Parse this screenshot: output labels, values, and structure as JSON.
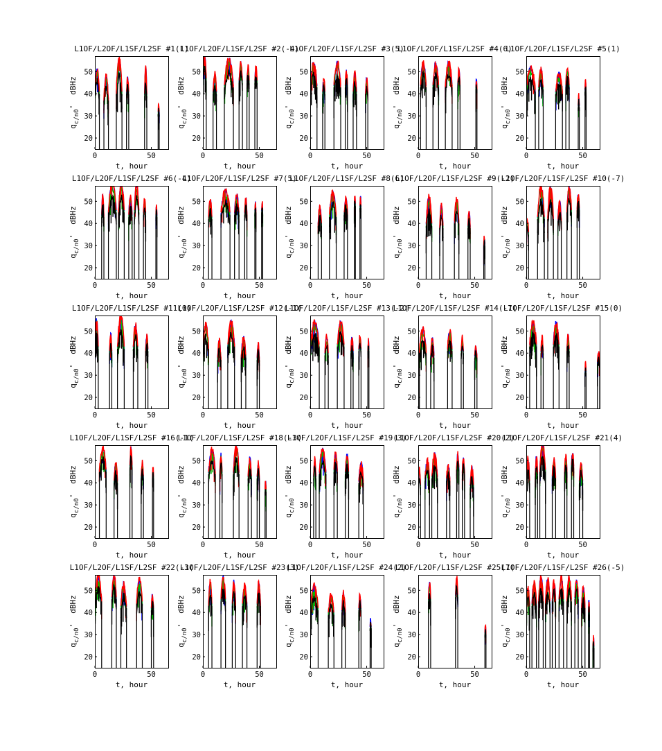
{
  "chart_data": {
    "type": "line",
    "series_colors": {
      "L1OF": "#0000ff",
      "L2OF": "#ff0000",
      "L1SF": "#00bb00",
      "L2SF": "#000000"
    },
    "xlabel": "t, hour",
    "ylabel_main": "q",
    "ylabel_sub": "c/n0",
    "ylabel_prime": "'",
    "ylabel_unit": "dBHz",
    "xlim": [
      0,
      65
    ],
    "ylim": [
      15,
      57
    ],
    "xticks": [
      0,
      50
    ],
    "yticks": [
      20,
      30,
      40,
      50
    ],
    "panels": [
      {
        "title": "L1OF/L2OF/L1SF/L2SF #1(1)",
        "passes": [
          [
            0,
            4,
            50,
            10
          ],
          [
            8,
            12,
            47,
            10
          ],
          [
            19,
            24,
            55,
            15
          ],
          [
            28,
            30,
            46,
            6
          ],
          [
            44,
            46,
            51,
            12
          ],
          [
            56,
            57,
            34,
            3
          ]
        ]
      },
      {
        "title": "L1OF/L2OF/L1SF/L2SF #2(-4)",
        "passes": [
          [
            0,
            3,
            56,
            10
          ],
          [
            9,
            12,
            48,
            8
          ],
          [
            19,
            27,
            55,
            12
          ],
          [
            32,
            35,
            53,
            8
          ],
          [
            39,
            41,
            51,
            6
          ],
          [
            46,
            48,
            51,
            6
          ]
        ]
      },
      {
        "title": "L1OF/L2OF/L1SF/L2SF #3(5)",
        "passes": [
          [
            0,
            6,
            53,
            10
          ],
          [
            11,
            13,
            46,
            6
          ],
          [
            21,
            27,
            53,
            10
          ],
          [
            31,
            33,
            49,
            6
          ],
          [
            38,
            41,
            48,
            8
          ],
          [
            49,
            51,
            46,
            6
          ]
        ]
      },
      {
        "title": "L1OF/L2OF/L1SF/L2SF #4(6)",
        "passes": [
          [
            2,
            7,
            53,
            10
          ],
          [
            13,
            18,
            53,
            10
          ],
          [
            24,
            30,
            53,
            10
          ],
          [
            35,
            37,
            50,
            6
          ],
          [
            51,
            52,
            46,
            4
          ]
        ]
      },
      {
        "title": "L1OF/L2OF/L1SF/L2SF #5(1)",
        "passes": [
          [
            0,
            8,
            51,
            10
          ],
          [
            11,
            15,
            50,
            8
          ],
          [
            26,
            32,
            48,
            8
          ],
          [
            35,
            38,
            51,
            8
          ],
          [
            46,
            47,
            38,
            4
          ],
          [
            52,
            53,
            45,
            4
          ]
        ]
      },
      {
        "title": "L1OF/L2OF/L1SF/L2SF #6(-4)",
        "passes": [
          [
            6,
            8,
            53,
            10
          ],
          [
            12,
            19,
            57,
            12
          ],
          [
            21,
            26,
            57,
            12
          ],
          [
            30,
            33,
            51,
            8
          ],
          [
            35,
            39,
            57,
            12
          ],
          [
            43,
            45,
            50,
            6
          ],
          [
            54,
            55,
            47,
            4
          ]
        ]
      },
      {
        "title": "L1OF/L2OF/L1SF/L2SF #7(5)",
        "passes": [
          [
            5,
            8,
            50,
            8
          ],
          [
            16,
            24,
            54,
            10
          ],
          [
            28,
            32,
            52,
            8
          ],
          [
            37,
            39,
            50,
            6
          ],
          [
            46,
            47,
            49,
            4
          ],
          [
            52,
            53,
            49,
            4
          ]
        ]
      },
      {
        "title": "L1OF/L2OF/L1SF/L2SF #8(6)",
        "passes": [
          [
            7,
            10,
            47,
            8
          ],
          [
            17,
            23,
            53,
            10
          ],
          [
            30,
            33,
            50,
            6
          ],
          [
            39,
            40,
            51,
            3
          ],
          [
            44,
            45,
            51,
            4
          ]
        ]
      },
      {
        "title": "L1OF/L2OF/L1SF/L2SF #9(-2)",
        "passes": [
          [
            7,
            12,
            51,
            12
          ],
          [
            19,
            22,
            48,
            10
          ],
          [
            32,
            36,
            50,
            10
          ],
          [
            44,
            46,
            44,
            6
          ],
          [
            58,
            59,
            33,
            3
          ]
        ]
      },
      {
        "title": "L1OF/L2OF/L1SF/L2SF #10(-7)",
        "passes": [
          [
            0,
            2,
            41,
            6
          ],
          [
            10,
            16,
            56,
            14
          ],
          [
            19,
            24,
            56,
            14
          ],
          [
            28,
            31,
            49,
            8
          ],
          [
            36,
            40,
            55,
            10
          ],
          [
            45,
            47,
            52,
            6
          ]
        ]
      },
      {
        "title": "L1OF/L2OF/L1SF/L2SF #11(0)",
        "passes": [
          [
            0,
            3,
            54,
            12
          ],
          [
            13,
            15,
            48,
            8
          ],
          [
            20,
            26,
            56,
            14
          ],
          [
            34,
            38,
            52,
            10
          ],
          [
            45,
            47,
            47,
            6
          ]
        ]
      },
      {
        "title": "L1OF/L2OF/L1SF/L2SF #12(-1(",
        "passes": [
          [
            0,
            5,
            52,
            10
          ],
          [
            13,
            16,
            45,
            8
          ],
          [
            22,
            28,
            53,
            10
          ],
          [
            34,
            38,
            46,
            8
          ],
          [
            48,
            50,
            43,
            6
          ]
        ]
      },
      {
        "title": "L1OF/L2OF/L1SF/L2SF #13(-2(",
        "passes": [
          [
            0,
            8,
            53,
            10
          ],
          [
            13,
            16,
            47,
            8
          ],
          [
            24,
            30,
            53,
            10
          ],
          [
            36,
            38,
            46,
            6
          ],
          [
            43,
            45,
            47,
            6
          ],
          [
            51,
            52,
            45,
            4
          ]
        ]
      },
      {
        "title": "L1OF/L2OF/L1SF/L2SF #14(-7(",
        "passes": [
          [
            1,
            7,
            50,
            10
          ],
          [
            11,
            14,
            46,
            8
          ],
          [
            26,
            30,
            49,
            8
          ],
          [
            38,
            40,
            46,
            6
          ],
          [
            50,
            52,
            42,
            4
          ]
        ]
      },
      {
        "title": "L1OF/L2OF/L1SF/L2SF #15(0)",
        "passes": [
          [
            3,
            9,
            53,
            10
          ],
          [
            13,
            15,
            46,
            6
          ],
          [
            24,
            29,
            53,
            10
          ],
          [
            36,
            38,
            47,
            6
          ],
          [
            52,
            53,
            34,
            3
          ],
          [
            63,
            65,
            39,
            4
          ]
        ]
      },
      {
        "title": "L1OF/L2OF/L1SF/L2SF #16(-1(",
        "passes": [
          [
            4,
            10,
            55,
            10
          ],
          [
            17,
            20,
            48,
            8
          ],
          [
            31,
            33,
            55,
            8
          ],
          [
            41,
            43,
            48,
            6
          ],
          [
            51,
            52,
            46,
            4
          ]
        ]
      },
      {
        "title": "L1OF/L2OF/L1SF/L2SF #18(-3(",
        "passes": [
          [
            5,
            11,
            54,
            10
          ],
          [
            15,
            17,
            52,
            8
          ],
          [
            27,
            32,
            56,
            12
          ],
          [
            40,
            43,
            50,
            8
          ],
          [
            48,
            50,
            48,
            6
          ],
          [
            55,
            56,
            40,
            4
          ]
        ]
      },
      {
        "title": "L1OF/L2OF/L1SF/L2SF #19(3)",
        "passes": [
          [
            3,
            5,
            50,
            8
          ],
          [
            8,
            14,
            54,
            10
          ],
          [
            21,
            24,
            53,
            8
          ],
          [
            31,
            34,
            52,
            8
          ],
          [
            43,
            47,
            48,
            8
          ]
        ]
      },
      {
        "title": "L1OF/L2OF/L1SF/L2SF #20(2)",
        "passes": [
          [
            0,
            2,
            46,
            8
          ],
          [
            6,
            10,
            49,
            8
          ],
          [
            12,
            17,
            52,
            10
          ],
          [
            25,
            28,
            47,
            6
          ],
          [
            34,
            36,
            52,
            6
          ],
          [
            39,
            41,
            50,
            6
          ],
          [
            46,
            49,
            46,
            8
          ]
        ]
      },
      {
        "title": "L1OF/L2OF/L1SF/L2SF #21(4)",
        "passes": [
          [
            0,
            3,
            50,
            10
          ],
          [
            8,
            10,
            51,
            8
          ],
          [
            12,
            17,
            57,
            12
          ],
          [
            23,
            26,
            50,
            8
          ],
          [
            34,
            36,
            51,
            6
          ],
          [
            40,
            42,
            53,
            6
          ],
          [
            47,
            50,
            48,
            8
          ]
        ]
      },
      {
        "title": "L1OF/L2OF/L1SF/L2SF #22(-3(",
        "passes": [
          [
            0,
            6,
            55,
            10
          ],
          [
            15,
            19,
            56,
            10
          ],
          [
            23,
            28,
            52,
            10
          ],
          [
            37,
            42,
            54,
            10
          ],
          [
            50,
            52,
            47,
            6
          ]
        ]
      },
      {
        "title": "L1OF/L2OF/L1SF/L2SF #23(3)",
        "passes": [
          [
            5,
            8,
            53,
            10
          ],
          [
            16,
            20,
            55,
            10
          ],
          [
            26,
            29,
            53,
            10
          ],
          [
            35,
            39,
            51,
            8
          ],
          [
            48,
            51,
            53,
            10
          ]
        ]
      },
      {
        "title": "L1OF/L2OF/L1SF/L2SF #24(2)",
        "passes": [
          [
            0,
            7,
            51,
            10
          ],
          [
            16,
            21,
            47,
            8
          ],
          [
            28,
            31,
            48,
            8
          ],
          [
            43,
            45,
            47,
            6
          ],
          [
            53,
            54,
            36,
            3
          ]
        ]
      },
      {
        "title": "L1OF/L2OF/L1SF/L2SF #25(7(",
        "passes": [
          [
            9,
            11,
            53,
            8
          ],
          [
            33,
            35,
            55,
            8
          ],
          [
            59,
            60,
            33,
            3
          ]
        ]
      },
      {
        "title": "L1OF/L2OF/L1SF/L2SF #26(-5)",
        "passes": [
          [
            0,
            3,
            50,
            8
          ],
          [
            5,
            9,
            53,
            10
          ],
          [
            11,
            15,
            55,
            10
          ],
          [
            17,
            21,
            54,
            10
          ],
          [
            23,
            26,
            53,
            8
          ],
          [
            29,
            33,
            55,
            10
          ],
          [
            36,
            40,
            55,
            10
          ],
          [
            43,
            46,
            54,
            8
          ],
          [
            49,
            52,
            50,
            8
          ],
          [
            55,
            56,
            45,
            6
          ],
          [
            59,
            60,
            28,
            4
          ]
        ]
      }
    ]
  }
}
